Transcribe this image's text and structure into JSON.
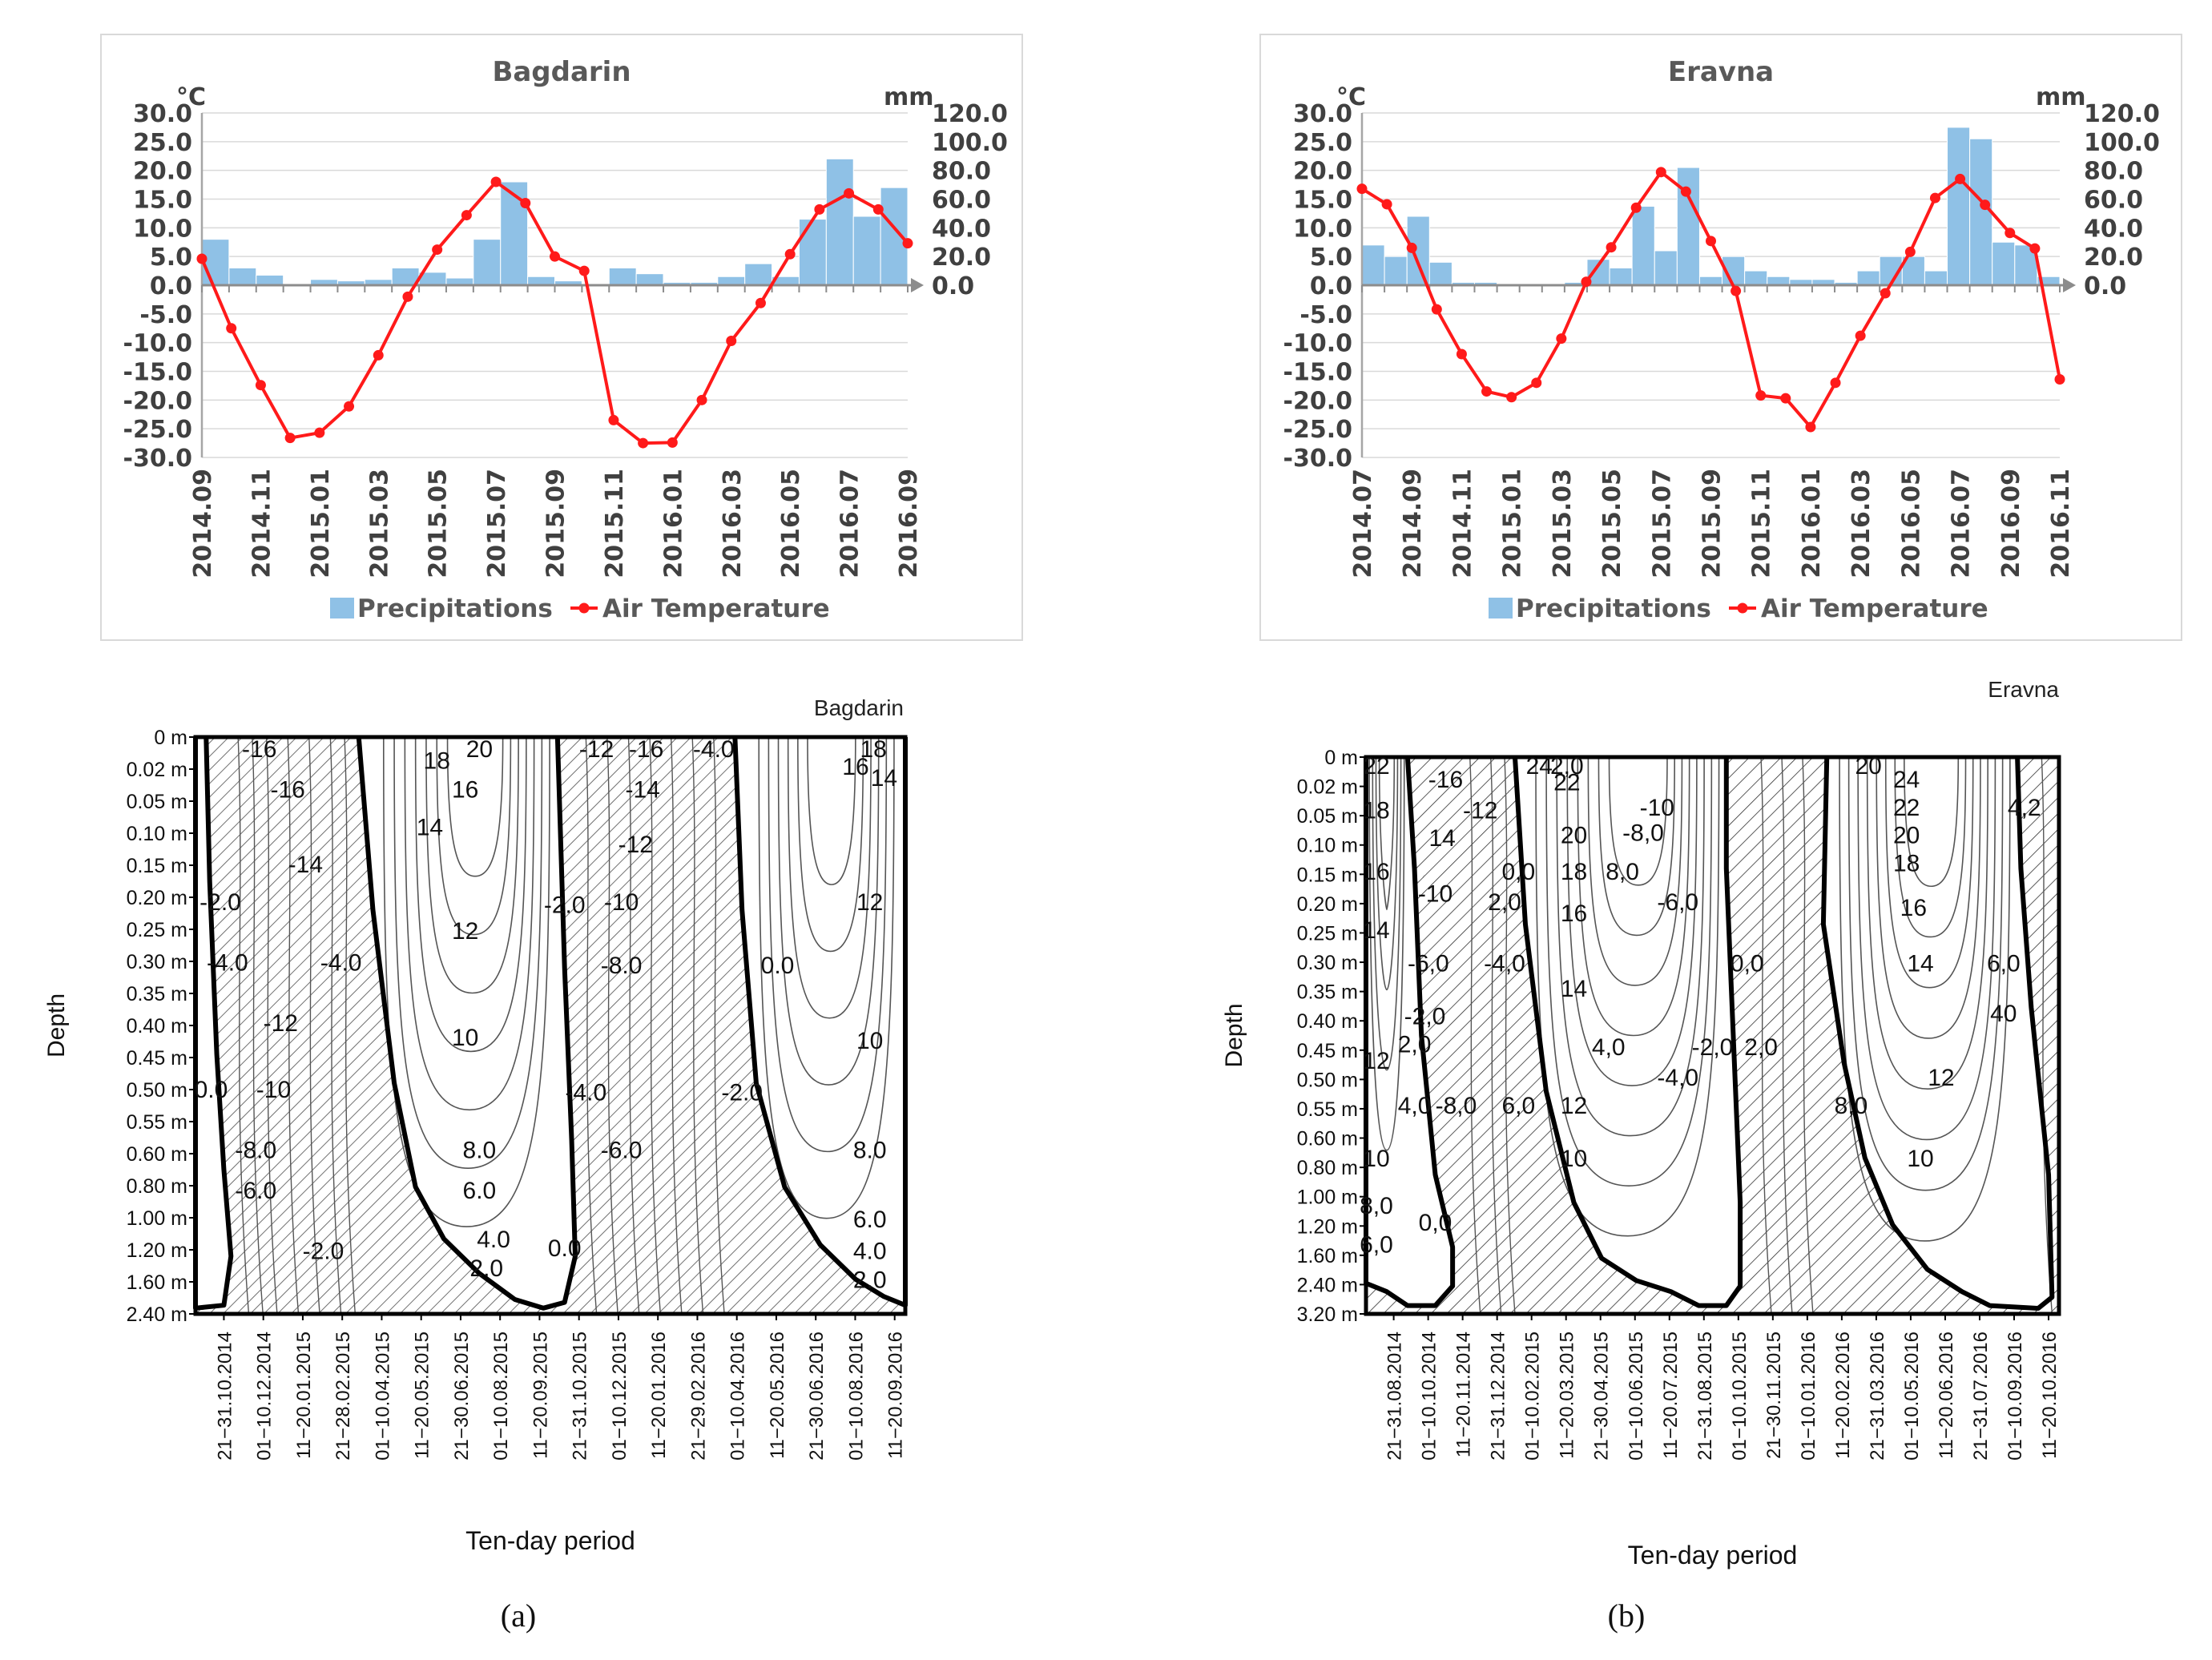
{
  "chart_data": [
    {
      "type": "bar+line",
      "panel": "a",
      "title": "Bagdarin",
      "left_unit": "°C",
      "right_unit": "mm",
      "left_ticks": [
        "30.0",
        "25.0",
        "20.0",
        "15.0",
        "10.0",
        "5.0",
        "0.0",
        "-5.0",
        "-10.0",
        "-15.0",
        "-20.0",
        "-25.0",
        "-30.0"
      ],
      "right_ticks": [
        "120.0",
        "100.0",
        "80.0",
        "60.0",
        "40.0",
        "20.0",
        "0.0"
      ],
      "ylim_temperature": [
        -30,
        30
      ],
      "ylim_precipitation": [
        0,
        120
      ],
      "x_labels": [
        "2014.09",
        "2014.11",
        "2015.01",
        "2015.03",
        "2015.05",
        "2015.07",
        "2015.09",
        "2015.11",
        "2016.01",
        "2016.03",
        "2016.05",
        "2016.07",
        "2016.09"
      ],
      "series": [
        {
          "name": "Precipitations",
          "kind": "bar",
          "color": "#8fc1e6",
          "values": [
            32,
            12,
            7,
            0,
            4,
            3,
            4,
            12,
            9,
            5,
            32,
            72,
            6,
            3,
            0,
            12,
            8,
            2,
            2,
            6,
            15,
            6,
            46,
            88,
            48,
            68
          ]
        },
        {
          "name": "Air Temperature",
          "kind": "line",
          "color": "#ff1a1a",
          "values": [
            4.6,
            -7.5,
            -17.4,
            -26.6,
            -25.7,
            -21.1,
            -12.2,
            -2.0,
            6.2,
            12.2,
            18.0,
            14.3,
            5.0,
            2.5,
            -23.5,
            -27.5,
            -27.4,
            -20.0,
            -9.7,
            -3.1,
            5.4,
            13.2,
            16.0,
            13.2,
            7.3
          ]
        }
      ],
      "legend": [
        "Precipitations",
        "Air Temperature"
      ]
    },
    {
      "type": "bar+line",
      "panel": "b",
      "title": "Eravna",
      "left_unit": "°C",
      "right_unit": "mm",
      "left_ticks": [
        "30.0",
        "25.0",
        "20.0",
        "15.0",
        "10.0",
        "5.0",
        "0.0",
        "-5.0",
        "-10.0",
        "-15.0",
        "-20.0",
        "-25.0",
        "-30.0"
      ],
      "right_ticks": [
        "120.0",
        "100.0",
        "80.0",
        "60.0",
        "40.0",
        "20.0",
        "0.0"
      ],
      "ylim_temperature": [
        -30,
        30
      ],
      "ylim_precipitation": [
        0,
        120
      ],
      "x_labels": [
        "2014.07",
        "2014.09",
        "2014.11",
        "2015.01",
        "2015.03",
        "2015.05",
        "2015.07",
        "2015.09",
        "2015.11",
        "2016.01",
        "2016.03",
        "2016.05",
        "2016.07",
        "2016.09",
        "2016.11"
      ],
      "series": [
        {
          "name": "Precipitations",
          "kind": "bar",
          "color": "#8fc1e6",
          "values": [
            28,
            20,
            48,
            16,
            2,
            2,
            1,
            1,
            1,
            2,
            18,
            12,
            55,
            24,
            82,
            6,
            20,
            10,
            6,
            4,
            4,
            2,
            10,
            20,
            20,
            10,
            110,
            102,
            30,
            28,
            6
          ]
        },
        {
          "name": "Air Temperature",
          "kind": "line",
          "color": "#ff1a1a",
          "values": [
            16.8,
            14.1,
            6.5,
            -4.2,
            -12.0,
            -18.5,
            -19.5,
            -17.0,
            -9.3,
            0.6,
            6.6,
            13.5,
            19.7,
            16.3,
            7.7,
            -1.0,
            -19.2,
            -19.7,
            -24.7,
            -17.0,
            -8.8,
            -1.4,
            5.8,
            15.2,
            18.5,
            14.0,
            9.1,
            6.4,
            -16.4
          ]
        }
      ],
      "legend": [
        "Precipitations",
        "Air Temperature"
      ]
    },
    {
      "type": "contour",
      "panel": "a",
      "title": "Bagdarin",
      "ylabel": "Depth",
      "xlabel": "Ten-day period",
      "depth_labels": [
        "0 m",
        "0.02 m",
        "0.05 m",
        "0.10 m",
        "0.15 m",
        "0.20 m",
        "0.25 m",
        "0.30 m",
        "0.35 m",
        "0.40 m",
        "0.45 m",
        "0.50 m",
        "0.55 m",
        "0.60 m",
        "0.80 m",
        "1.00 m",
        "1.20 m",
        "1.60 m",
        "2.40 m"
      ],
      "period_labels": [
        "21−31.10.2014",
        "01−10.12.2014",
        "11−20.01.2015",
        "21−28.02.2015",
        "01−10.04.2015",
        "11−20.05.2015",
        "21−30.06.2015",
        "01−10.08.2015",
        "11−20.09.2015",
        "21−31.10.2015",
        "01−10.12.2015",
        "11−20.01.2016",
        "21−29.02.2016",
        "01−10.04.2016",
        "11−20.05.2016",
        "21−30.06.2016",
        "01−10.08.2016",
        "11−20.09.2016"
      ],
      "contour_labels": [
        "-16",
        "-16",
        "-14",
        "-2.0",
        "-4.0",
        "-12",
        "0.0",
        "-10",
        "-8.0",
        "-6.0",
        "20",
        "18",
        "16",
        "14",
        "12",
        "10",
        "8.0",
        "6.0",
        "4.0",
        "2.0",
        "-4.0",
        "-2.0",
        "0.0",
        "-2.0",
        "-12",
        "-16",
        "-4.0",
        "-14",
        "-12",
        "-10",
        "-8.0",
        "-4.0",
        "-6.0",
        "-2.0",
        "0.0",
        "18",
        "16",
        "14",
        "12",
        "10",
        "8.0",
        "6.0",
        "4.0",
        "2.0"
      ]
    },
    {
      "type": "contour",
      "panel": "b",
      "title": "Eravna",
      "ylabel": "Depth",
      "xlabel": "Ten-day period",
      "depth_labels": [
        "0 m",
        "0.02 m",
        "0.05 m",
        "0.10 m",
        "0.15 m",
        "0.20 m",
        "0.25 m",
        "0.30 m",
        "0.35 m",
        "0.40 m",
        "0.45 m",
        "0.50 m",
        "0.55 m",
        "0.60 m",
        "0.80 m",
        "1.00 m",
        "1.20 m",
        "1.60 m",
        "2.40 m",
        "3.20 m"
      ],
      "period_labels": [
        "21−31.08.2014",
        "01−10.10.2014",
        "11−20.11.2014",
        "21−31.12.2014",
        "01−10.02.2015",
        "11−20.03.2015",
        "21−30.04.2015",
        "01−10.06.2015",
        "11−20.07.2015",
        "21−31.08.2015",
        "01−10.10.2015",
        "21−30.11.2015",
        "01−10.01.2016",
        "11−20.02.2016",
        "21−31.03.2016",
        "01−10.05.2016",
        "11−20.06.2016",
        "21−31.07.2016",
        "01−10.09.2016",
        "11−20.10.2016"
      ],
      "contour_labels": [
        "22",
        "18",
        "16",
        "14",
        "12",
        "10",
        "8,0",
        "6,0",
        "-16",
        "-12",
        "14",
        "-10",
        "-6,0",
        "-2,0",
        "2,0",
        "4,0",
        "-8,0",
        "0,0",
        "24",
        "22",
        "2,0",
        "20",
        "18",
        "16",
        "14",
        "0,0",
        "2,0",
        "8,0",
        "6,0",
        "12",
        "10",
        "-4,0",
        "4,0",
        "-10",
        "-8,0",
        "-6,0",
        "-2,0",
        "-4,0",
        "2,0",
        "0,0",
        "20",
        "24",
        "22",
        "20",
        "18",
        "16",
        "14",
        "12",
        "10",
        "8,0",
        "6,0",
        "40",
        "4,2"
      ]
    }
  ],
  "captions": [
    "(a)",
    "(b)"
  ]
}
